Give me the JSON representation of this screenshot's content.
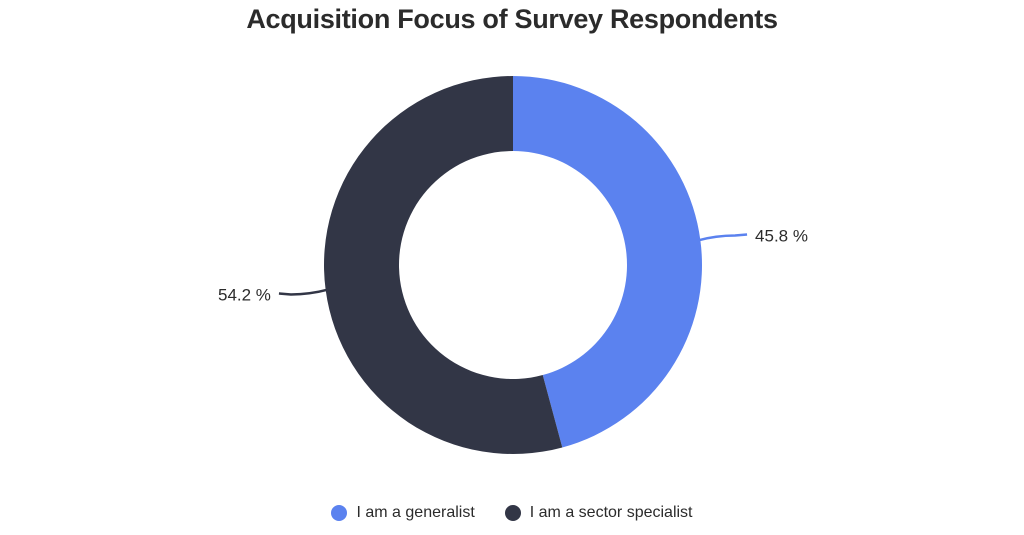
{
  "chart_data": {
    "type": "pie",
    "variant": "donut",
    "title": "Acquisition Focus of Survey Respondents",
    "categories": [
      "I am a generalist",
      "I am a sector specialist"
    ],
    "values": [
      45.8,
      54.2
    ],
    "value_labels": [
      "45.8 %",
      "54.2 %"
    ],
    "colors": [
      "#5b82ef",
      "#323646"
    ],
    "legend_position": "bottom"
  }
}
